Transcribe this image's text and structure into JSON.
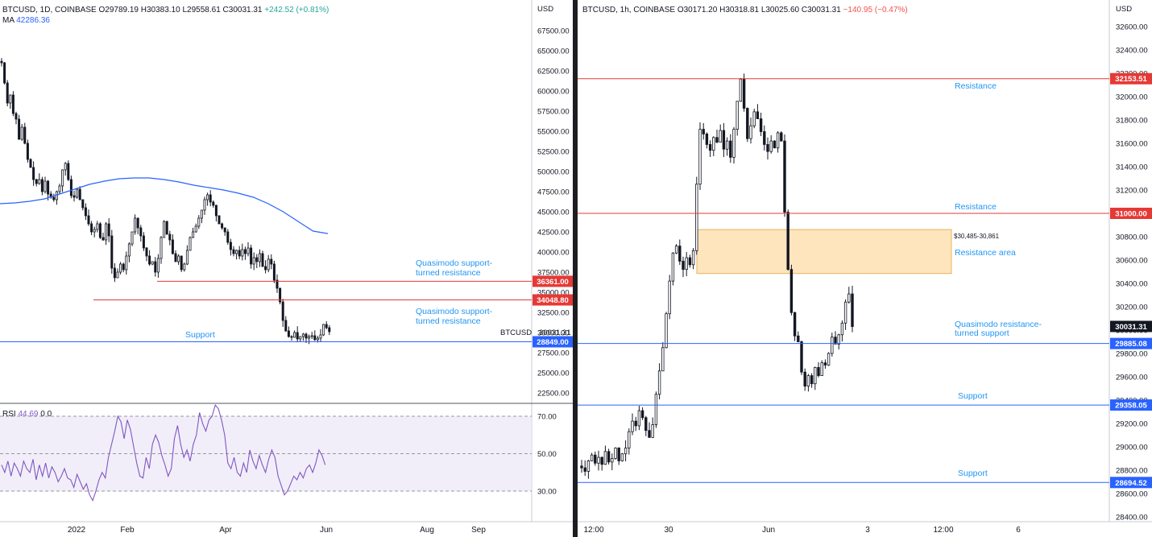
{
  "left_panel": {
    "header": {
      "symbol": "BTCUSD, 1D, COINBASE",
      "open": "O29789.19",
      "high": "H30383.10",
      "low": "L29558.61",
      "close": "C30031.31",
      "change": "+242.52 (+0.81%)"
    },
    "ma_label": "MA",
    "ma_value": "42286.36",
    "currency": "USD",
    "rsi_label": "RSI",
    "rsi_value": "44.69",
    "rsi_extra": "0  0",
    "symbol_tag": "BTCUSD",
    "price_tag": "30031.31"
  },
  "right_panel": {
    "header": {
      "symbol": "BTCUSD, 1h, COINBASE",
      "open": "O30171.20",
      "high": "H30318.81",
      "low": "L30025.60",
      "close": "C30031.31",
      "change": "−140.95 (−0.47%)"
    },
    "currency": "USD",
    "price_tag": "30031.31"
  },
  "colors": {
    "resistance": "#e53935",
    "support": "#2962ff",
    "annotation_text": "#2196f3",
    "ma": "#2962ff",
    "rsi": "#7e57c2",
    "zone_fill": "#ffe0b2",
    "zone_border": "#e6b45a"
  },
  "chart_data": [
    {
      "type": "candlestick",
      "title": "BTCUSD, 1D, COINBASE",
      "y_axis_ticks": [
        "67500.00",
        "65000.00",
        "62500.00",
        "60000.00",
        "57500.00",
        "55000.00",
        "52500.00",
        "50000.00",
        "47500.00",
        "45000.00",
        "42500.00",
        "40000.00",
        "37500.00",
        "35000.00",
        "32500.00",
        "30000.00",
        "27500.00",
        "25000.00",
        "22500.00"
      ],
      "ylim": [
        21000,
        69000
      ],
      "x_axis_ticks": [
        "2022",
        "Feb",
        "Apr",
        "Jun",
        "Aug",
        "Sep"
      ],
      "close_series": [
        63500,
        61000,
        58500,
        59500,
        57200,
        56500,
        54000,
        55500,
        53500,
        51500,
        50500,
        49000,
        48500,
        49000,
        47500,
        48800,
        47200,
        46800,
        46500,
        47500,
        48200,
        50200,
        51000,
        49000,
        47000,
        46800,
        47800,
        46500,
        45500,
        44500,
        43500,
        42500,
        42800,
        43500,
        41800,
        41500,
        43500,
        42000,
        38000,
        36800,
        37500,
        38500,
        37800,
        39500,
        41000,
        42500,
        44200,
        43000,
        42000,
        40500,
        39500,
        38500,
        38800,
        37500,
        39200,
        41800,
        43800,
        42200,
        41500,
        39800,
        38800,
        39500,
        37800,
        38500,
        40200,
        41800,
        42500,
        43200,
        44200,
        45200,
        46500,
        47100,
        46200,
        45800,
        44500,
        43500,
        43000,
        42500,
        41200,
        40300,
        39800,
        40200,
        39500,
        40300,
        39800,
        40500,
        38500,
        39300,
        38800,
        39800,
        38200,
        37800,
        39100,
        38500,
        36500,
        35500,
        33800,
        31500,
        30200,
        29500,
        29400,
        30000,
        29200,
        29500,
        29800,
        29300,
        29500,
        29600,
        29100,
        29300,
        29700,
        31000,
        30600,
        30100
      ],
      "moving_average": [
        46000,
        46100,
        46300,
        46600,
        47200,
        47800,
        48400,
        48800,
        49100,
        49200,
        49200,
        49000,
        48700,
        48300,
        48000,
        47700,
        47300,
        46800,
        46000,
        45000,
        43800,
        42600,
        42286
      ],
      "moving_average_label": "MA 42286.36",
      "levels": [
        {
          "label": "Quasimodo support-turned resistance",
          "price": 36361.0,
          "price_label": "36361.00",
          "type": "resistance"
        },
        {
          "label": "Quasimodo support-turned resistance",
          "price": 34048.8,
          "price_label": "34048.80",
          "type": "resistance"
        },
        {
          "label": "Support",
          "price": 28849.0,
          "price_label": "28849.00",
          "type": "support"
        }
      ],
      "last_price": 30031.31,
      "last_price_label": "30031.31",
      "symbol_tag": "BTCUSD",
      "subplot": {
        "type": "line",
        "name": "RSI",
        "current": 44.69,
        "y_axis_ticks": [
          "70.00",
          "50.00",
          "30.00"
        ],
        "ylim": [
          22,
          78
        ],
        "band": [
          30,
          70
        ],
        "values": [
          44,
          40,
          46,
          38,
          45,
          42,
          38,
          46,
          42,
          40,
          47,
          36,
          44,
          38,
          45,
          37,
          43,
          40,
          35,
          38,
          42,
          37,
          36,
          32,
          39,
          35,
          31,
          34,
          28,
          25,
          30,
          36,
          40,
          37,
          48,
          55,
          62,
          70,
          67,
          58,
          68,
          63,
          54,
          45,
          38,
          37,
          48,
          42,
          55,
          60,
          56,
          49,
          44,
          38,
          42,
          58,
          65,
          55,
          48,
          52,
          46,
          55,
          60,
          72,
          66,
          62,
          68,
          70,
          76,
          74,
          68,
          60,
          45,
          42,
          48,
          40,
          38,
          45,
          40,
          52,
          46,
          42,
          49,
          44,
          40,
          47,
          52,
          48,
          38,
          33,
          28,
          30,
          34,
          38,
          36,
          40,
          37,
          42,
          44,
          40,
          45,
          52,
          49,
          44
        ]
      }
    },
    {
      "type": "candlestick",
      "title": "BTCUSD, 1h, COINBASE",
      "y_axis_ticks": [
        "32600.00",
        "32400.00",
        "32200.00",
        "32000.00",
        "31800.00",
        "31600.00",
        "31400.00",
        "31200.00",
        "31000.00",
        "30800.00",
        "30600.00",
        "30400.00",
        "30200.00",
        "30000.00",
        "29800.00",
        "29600.00",
        "29400.00",
        "29200.00",
        "29000.00",
        "28800.00",
        "28600.00",
        "28400.00"
      ],
      "ylim": [
        28350,
        32720
      ],
      "x_axis_ticks": [
        "12:00",
        "30",
        "Jun",
        "3",
        "12:00",
        "6"
      ],
      "close_series": [
        28820,
        28790,
        28880,
        28930,
        28860,
        28910,
        28850,
        28960,
        28870,
        28900,
        28990,
        28880,
        28940,
        28990,
        29130,
        29220,
        29180,
        29310,
        29250,
        29140,
        29080,
        29190,
        29450,
        29650,
        29850,
        30140,
        30420,
        30660,
        30720,
        30590,
        30520,
        30620,
        30560,
        30680,
        31250,
        31720,
        31680,
        31590,
        31540,
        31650,
        31610,
        31710,
        31550,
        31620,
        31480,
        31720,
        31960,
        32150,
        31900,
        31640,
        31750,
        31870,
        31810,
        31700,
        31590,
        31530,
        31620,
        31560,
        31690,
        31620,
        31010,
        30520,
        30150,
        29950,
        29900,
        29640,
        29520,
        29610,
        29540,
        29680,
        29610,
        29720,
        29700,
        29800,
        29940,
        29880,
        29960,
        30060,
        30240,
        30310,
        30030
      ],
      "levels": [
        {
          "label": "Resistance",
          "price": 32153.51,
          "price_label": "32153.51",
          "type": "resistance"
        },
        {
          "label": "Resistance",
          "price": 31000.0,
          "price_label": "31000.00",
          "type": "resistance"
        },
        {
          "label": "Quasimodo resistance-turned support",
          "price": 29885.08,
          "price_label": "29885.08",
          "type": "support"
        },
        {
          "label": "Support",
          "price": 29358.05,
          "price_label": "29358.05",
          "type": "support"
        },
        {
          "label": "Support",
          "price": 28694.52,
          "price_label": "28694.52",
          "type": "support"
        }
      ],
      "zone": {
        "label": "Resistance area",
        "range_label": "$30,485-30,861",
        "low": 30485,
        "high": 30861
      },
      "last_price": 30031.31,
      "last_price_label": "30031.31"
    }
  ]
}
